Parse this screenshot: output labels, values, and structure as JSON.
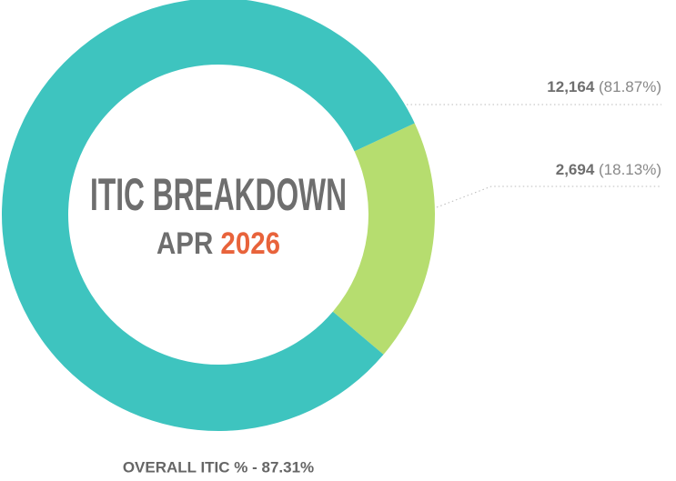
{
  "chart_data": {
    "type": "donut",
    "title": "ITIC BREAKDOWN",
    "subtitle": {
      "month": "APR",
      "year": "2026"
    },
    "footer": "OVERALL ITIC % - 87.31%",
    "values": [
      12164,
      2694
    ],
    "value_labels": [
      "12,164",
      "2,694"
    ],
    "percentages": [
      81.87,
      18.13
    ],
    "percentage_labels": [
      "(81.87%)",
      "(18.13%)"
    ],
    "colors": [
      "#3ec4bf",
      "#b6dd6f"
    ]
  }
}
